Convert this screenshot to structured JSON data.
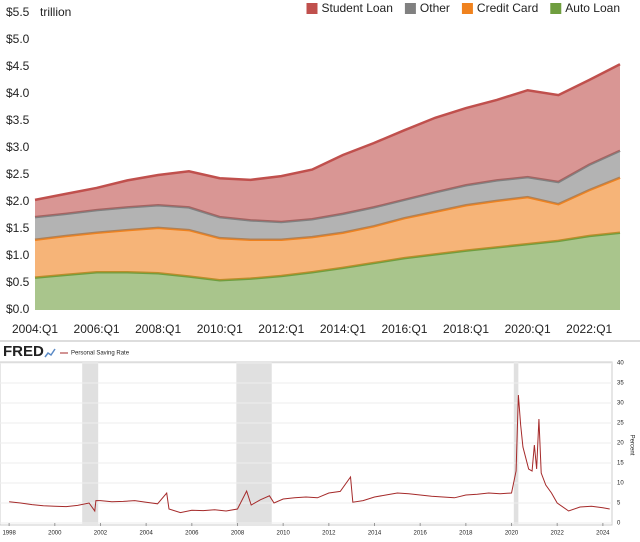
{
  "chart_data": [
    {
      "type": "area",
      "stacked": true,
      "y_unit": "trillion",
      "legend": "top-right",
      "grid": false,
      "categories": [
        "2004:Q1",
        null,
        "2006:Q1",
        null,
        "2008:Q1",
        null,
        "2010:Q1",
        null,
        "2012:Q1",
        null,
        "2014:Q1",
        null,
        "2016:Q1",
        null,
        "2018:Q1",
        null,
        "2020:Q1",
        null,
        "2022:Q1",
        null
      ],
      "series": [
        {
          "name": "Auto Loan",
          "color": "#6f9e3f",
          "values": [
            0.6,
            0.65,
            0.7,
            0.7,
            0.68,
            0.62,
            0.55,
            0.58,
            0.63,
            0.7,
            0.78,
            0.87,
            0.96,
            1.03,
            1.1,
            1.16,
            1.22,
            1.28,
            1.37,
            1.43
          ]
        },
        {
          "name": "Credit Card",
          "color": "#f0821e",
          "values": [
            0.7,
            0.72,
            0.73,
            0.78,
            0.84,
            0.86,
            0.78,
            0.72,
            0.67,
            0.65,
            0.65,
            0.68,
            0.74,
            0.79,
            0.84,
            0.86,
            0.87,
            0.68,
            0.85,
            1.02
          ]
        },
        {
          "name": "Other",
          "color": "#808080",
          "values": [
            0.42,
            0.41,
            0.42,
            0.42,
            0.42,
            0.42,
            0.39,
            0.36,
            0.33,
            0.33,
            0.35,
            0.35,
            0.34,
            0.36,
            0.37,
            0.38,
            0.37,
            0.41,
            0.47,
            0.5
          ]
        },
        {
          "name": "Student Loan",
          "color": "#c0504d",
          "values": [
            0.32,
            0.37,
            0.41,
            0.5,
            0.56,
            0.67,
            0.72,
            0.75,
            0.85,
            0.92,
            1.09,
            1.19,
            1.29,
            1.38,
            1.43,
            1.49,
            1.61,
            1.61,
            1.57,
            1.6
          ]
        }
      ],
      "ylim": [
        0,
        5.5
      ],
      "yticks": [
        {
          "value": 0,
          "label": "$0.0"
        },
        {
          "value": 0.5,
          "label": "$0.5"
        },
        {
          "value": 1,
          "label": "$1.0"
        },
        {
          "value": 1.5,
          "label": "$1.5"
        },
        {
          "value": 2,
          "label": "$2.0"
        },
        {
          "value": 2.5,
          "label": "$2.5"
        },
        {
          "value": 3,
          "label": "$3.0"
        },
        {
          "value": 3.5,
          "label": "$3.5"
        },
        {
          "value": 4,
          "label": "$4.0"
        },
        {
          "value": 4.5,
          "label": "$4.5"
        },
        {
          "value": 5,
          "label": "$5.0"
        },
        {
          "value": 5.5,
          "label": "$5.5"
        }
      ]
    },
    {
      "type": "line",
      "brand": "FRED",
      "ylabel": "Percent",
      "y_axis_side": "right",
      "grid": true,
      "x": [
        1998.0,
        1998.5,
        1999.0,
        1999.5,
        2000.0,
        2000.5,
        2001.0,
        2001.5,
        2001.75,
        2001.8,
        2002.0,
        2002.5,
        2003.0,
        2003.5,
        2004.0,
        2004.5,
        2004.9,
        2005.0,
        2005.5,
        2006.0,
        2006.5,
        2007.0,
        2007.5,
        2008.0,
        2008.4,
        2008.6,
        2009.0,
        2009.4,
        2009.6,
        2010.0,
        2010.5,
        2011.0,
        2011.5,
        2012.0,
        2012.5,
        2012.95,
        2013.05,
        2013.5,
        2014.0,
        2014.5,
        2015.0,
        2015.5,
        2016.0,
        2016.5,
        2017.0,
        2017.5,
        2018.0,
        2018.5,
        2019.0,
        2019.5,
        2020.0,
        2020.2,
        2020.3,
        2020.4,
        2020.5,
        2020.75,
        2020.9,
        2021.0,
        2021.1,
        2021.2,
        2021.3,
        2021.5,
        2021.75,
        2022.0,
        2022.5,
        2023.0,
        2023.5,
        2024.0,
        2024.3
      ],
      "series": [
        {
          "name": "Personal Saving Rate",
          "color": "#a52a2a",
          "values": [
            5.3,
            5.0,
            4.6,
            4.3,
            4.2,
            4.1,
            4.4,
            5.0,
            3.0,
            5.6,
            5.6,
            5.3,
            5.4,
            5.6,
            5.2,
            4.8,
            7.5,
            3.5,
            2.6,
            3.2,
            3.1,
            3.3,
            3.0,
            3.5,
            8.0,
            4.5,
            5.8,
            6.8,
            5.0,
            6.0,
            6.3,
            6.5,
            6.3,
            7.5,
            7.9,
            11.5,
            5.2,
            5.6,
            6.5,
            7.0,
            7.5,
            7.3,
            7.0,
            6.7,
            6.5,
            6.3,
            7.0,
            7.2,
            7.5,
            7.3,
            7.5,
            13,
            32,
            24.5,
            19,
            13.5,
            13,
            19.5,
            13.5,
            26,
            12.5,
            9.5,
            7.5,
            5.0,
            3.0,
            4.0,
            4.2,
            3.8,
            3.5
          ]
        }
      ],
      "recessions": [
        [
          2001.2,
          2001.9
        ],
        [
          2007.95,
          2009.5
        ],
        [
          2020.1,
          2020.3
        ]
      ],
      "xlim": [
        1997.6,
        2024.4
      ],
      "xticks": [
        1998,
        2000,
        2002,
        2004,
        2006,
        2008,
        2010,
        2012,
        2014,
        2016,
        2018,
        2020,
        2022,
        2024
      ],
      "ylim": [
        0,
        40
      ],
      "yticks": [
        0,
        5,
        10,
        15,
        20,
        25,
        30,
        35,
        40
      ]
    }
  ]
}
